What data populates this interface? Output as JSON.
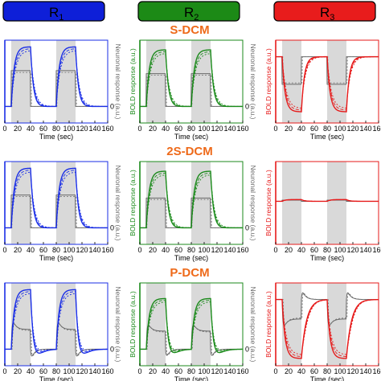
{
  "regions": [
    {
      "label": "R",
      "sub": "1",
      "fill": "#0e1fd8"
    },
    {
      "label": "R",
      "sub": "2",
      "fill": "#1c8a16"
    },
    {
      "label": "R",
      "sub": "3",
      "fill": "#e81c1c"
    }
  ],
  "models": [
    "S-DCM",
    "2S-DCM",
    "P-DCM"
  ],
  "axis": {
    "xlabel": "Time (sec)",
    "xticks": [
      "0",
      "20",
      "40",
      "60",
      "80",
      "100",
      "120",
      "140",
      "160"
    ],
    "zero_label": "0",
    "bold_ylabel": "BOLD response (a.u.)",
    "neuronal_ylabel": "Neuronal response (a.u.)"
  },
  "colors": {
    "R1": "#1a2ee6",
    "R2": "#1b8a1b",
    "R3": "#e61a1a",
    "neuronal": "#6a6a6a",
    "stimulus": "#d9d9d9",
    "title": "#ee6a1a"
  },
  "chart_data": [
    {
      "type": "line",
      "panel": "S-DCM / R1",
      "xlim": [
        0,
        160
      ],
      "stimulus_blocks": [
        [
          10,
          40
        ],
        [
          80,
          110
        ]
      ],
      "bold_amplitude": 1.0,
      "bold_undershoot": 0.02,
      "neuronal_amplitude": 0.6,
      "neuronal_shape": "square"
    },
    {
      "type": "line",
      "panel": "S-DCM / R2",
      "xlim": [
        0,
        160
      ],
      "stimulus_blocks": [
        [
          10,
          40
        ],
        [
          80,
          110
        ]
      ],
      "bold_amplitude": 0.95,
      "bold_undershoot": 0.02,
      "neuronal_amplitude": 0.55,
      "neuronal_shape": "square"
    },
    {
      "type": "line",
      "panel": "S-DCM / R3",
      "xlim": [
        0,
        160
      ],
      "stimulus_blocks": [
        [
          10,
          40
        ],
        [
          80,
          110
        ]
      ],
      "bold_amplitude": -0.7,
      "bold_undershoot": 0.0,
      "neuronal_amplitude": -0.35,
      "neuronal_shape": "square"
    },
    {
      "type": "line",
      "panel": "2S-DCM / R1",
      "xlim": [
        0,
        160
      ],
      "stimulus_blocks": [
        [
          10,
          40
        ],
        [
          80,
          110
        ]
      ],
      "bold_amplitude": 1.0,
      "bold_undershoot": 0.02,
      "neuronal_amplitude": 0.55,
      "neuronal_shape": "square"
    },
    {
      "type": "line",
      "panel": "2S-DCM / R2",
      "xlim": [
        0,
        160
      ],
      "stimulus_blocks": [
        [
          10,
          40
        ],
        [
          80,
          110
        ]
      ],
      "bold_amplitude": 0.95,
      "bold_undershoot": 0.02,
      "neuronal_amplitude": 0.5,
      "neuronal_shape": "square"
    },
    {
      "type": "line",
      "panel": "2S-DCM / R3",
      "xlim": [
        0,
        160
      ],
      "stimulus_blocks": [
        [
          10,
          40
        ],
        [
          80,
          110
        ]
      ],
      "bold_amplitude": 0.03,
      "bold_undershoot": 0.0,
      "neuronal_amplitude": 0.02,
      "neuronal_shape": "square"
    },
    {
      "type": "line",
      "panel": "P-DCM / R1",
      "xlim": [
        0,
        160
      ],
      "stimulus_blocks": [
        [
          10,
          40
        ],
        [
          80,
          110
        ]
      ],
      "bold_amplitude": 1.0,
      "bold_undershoot": 0.18,
      "neuronal_amplitude": 0.6,
      "neuronal_shape": "adapting"
    },
    {
      "type": "line",
      "panel": "P-DCM / R2",
      "xlim": [
        0,
        160
      ],
      "stimulus_blocks": [
        [
          10,
          40
        ],
        [
          80,
          110
        ]
      ],
      "bold_amplitude": 0.85,
      "bold_undershoot": 0.18,
      "neuronal_amplitude": 0.55,
      "neuronal_shape": "adapting"
    },
    {
      "type": "line",
      "panel": "P-DCM / R3",
      "xlim": [
        0,
        160
      ],
      "stimulus_blocks": [
        [
          10,
          40
        ],
        [
          80,
          110
        ]
      ],
      "bold_amplitude": -0.75,
      "bold_undershoot": -0.2,
      "neuronal_amplitude": -0.45,
      "neuronal_shape": "adapting"
    }
  ]
}
